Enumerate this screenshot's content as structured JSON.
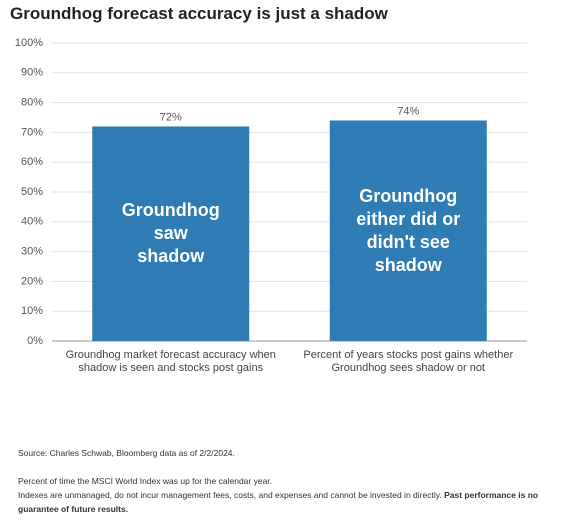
{
  "chart_data": {
    "type": "bar",
    "title": "Groundhog forecast accuracy is just a shadow",
    "categories": [
      "Groundhog market forecast accuracy when shadow is seen and stocks post gains",
      "Percent of years stocks post gains whether Groundhog sees shadow or not"
    ],
    "values": [
      72,
      74
    ],
    "value_labels": [
      "72%",
      "74%"
    ],
    "bar_texts": [
      "Groundhog saw shadow",
      "Groundhog either did or didn't see shadow"
    ],
    "color": "#2f7bb3",
    "ylim": [
      0,
      100
    ],
    "yticks": [
      {
        "value": 0,
        "label": "0%"
      },
      {
        "value": 10,
        "label": "10%"
      },
      {
        "value": 20,
        "label": "20%"
      },
      {
        "value": 30,
        "label": "30%"
      },
      {
        "value": 40,
        "label": "40%"
      },
      {
        "value": 50,
        "label": "50%"
      },
      {
        "value": 60,
        "label": "60%"
      },
      {
        "value": 70,
        "label": "70%"
      },
      {
        "value": 80,
        "label": "80%"
      },
      {
        "value": 90,
        "label": "90%"
      },
      {
        "value": 100,
        "label": "100%"
      }
    ],
    "grid": true
  },
  "footnotes": {
    "source": "Source: Charles Schwab, Bloomberg data as of 2/2/2024.",
    "note": "Percent of time the MSCI World Index was up for the calendar year.",
    "disclaimer": "Indexes are unmanaged, do not incur management fees, costs, and expenses and cannot be invested in directly.",
    "disclaimer_bold": "Past performance is no guarantee of future results."
  }
}
